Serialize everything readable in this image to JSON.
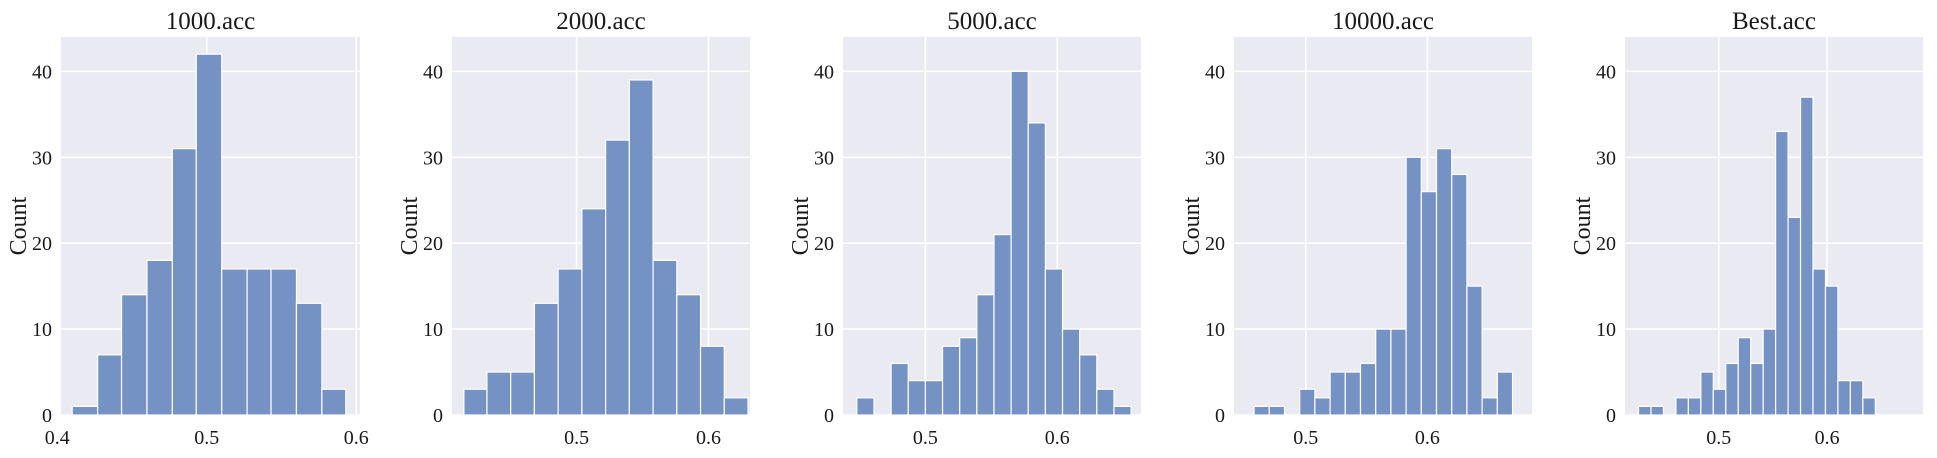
{
  "style": {
    "panel_background": "#eaeaf2",
    "grid_color": "#ffffff",
    "bar_color": "#7592c4",
    "bar_edge": "#ffffff"
  },
  "chart_data": [
    {
      "type": "histogram",
      "title": "1000.acc",
      "xlabel": "",
      "ylabel": "Count",
      "xlim": [
        0.4025,
        0.6025
      ],
      "ylim": [
        0,
        44
      ],
      "xticks": [
        0.4,
        0.5,
        0.6
      ],
      "xtick_labels": [
        "0.4",
        "0.5",
        "0.6"
      ],
      "yticks": [
        0,
        10,
        20,
        30,
        40
      ],
      "ytick_labels": [
        "0",
        "10",
        "20",
        "30",
        "40"
      ],
      "grid": true,
      "bins": [
        {
          "x0": 0.41,
          "x1": 0.427,
          "count": 1
        },
        {
          "x0": 0.427,
          "x1": 0.443,
          "count": 7
        },
        {
          "x0": 0.443,
          "x1": 0.46,
          "count": 14
        },
        {
          "x0": 0.46,
          "x1": 0.477,
          "count": 18
        },
        {
          "x0": 0.477,
          "x1": 0.493,
          "count": 31
        },
        {
          "x0": 0.493,
          "x1": 0.51,
          "count": 42
        },
        {
          "x0": 0.51,
          "x1": 0.527,
          "count": 17
        },
        {
          "x0": 0.527,
          "x1": 0.543,
          "count": 17
        },
        {
          "x0": 0.543,
          "x1": 0.56,
          "count": 17
        },
        {
          "x0": 0.56,
          "x1": 0.577,
          "count": 13
        },
        {
          "x0": 0.577,
          "x1": 0.593,
          "count": 3
        }
      ]
    },
    {
      "type": "histogram",
      "title": "2000.acc",
      "xlabel": "",
      "ylabel": "Count",
      "xlim": [
        0.4055,
        0.6315
      ],
      "ylim": [
        0,
        44
      ],
      "xticks": [
        0.5,
        0.6
      ],
      "xtick_labels": [
        "0.5",
        "0.6"
      ],
      "yticks": [
        0,
        10,
        20,
        30,
        40
      ],
      "ytick_labels": [
        "0",
        "10",
        "20",
        "30",
        "40"
      ],
      "grid": true,
      "bins": [
        {
          "x0": 0.4145,
          "x1": 0.432,
          "count": 3
        },
        {
          "x0": 0.432,
          "x1": 0.45,
          "count": 5
        },
        {
          "x0": 0.45,
          "x1": 0.468,
          "count": 5
        },
        {
          "x0": 0.468,
          "x1": 0.486,
          "count": 13
        },
        {
          "x0": 0.486,
          "x1": 0.504,
          "count": 17
        },
        {
          "x0": 0.504,
          "x1": 0.522,
          "count": 24
        },
        {
          "x0": 0.522,
          "x1": 0.54,
          "count": 32
        },
        {
          "x0": 0.54,
          "x1": 0.558,
          "count": 39
        },
        {
          "x0": 0.558,
          "x1": 0.576,
          "count": 18
        },
        {
          "x0": 0.576,
          "x1": 0.594,
          "count": 14
        },
        {
          "x0": 0.594,
          "x1": 0.612,
          "count": 8
        },
        {
          "x0": 0.612,
          "x1": 0.63,
          "count": 2
        }
      ]
    },
    {
      "type": "histogram",
      "title": "5000.acc",
      "xlabel": "",
      "ylabel": "Count",
      "xlim": [
        0.4375,
        0.6635
      ],
      "ylim": [
        0,
        44
      ],
      "xticks": [
        0.5,
        0.6
      ],
      "xtick_labels": [
        "0.5",
        "0.6"
      ],
      "yticks": [
        0,
        10,
        20,
        30,
        40
      ],
      "ytick_labels": [
        "0",
        "10",
        "20",
        "30",
        "40"
      ],
      "grid": true,
      "bins": [
        {
          "x0": 0.448,
          "x1": 0.461,
          "count": 2
        },
        {
          "x0": 0.474,
          "x1": 0.487,
          "count": 6
        },
        {
          "x0": 0.487,
          "x1": 0.5,
          "count": 4
        },
        {
          "x0": 0.5,
          "x1": 0.513,
          "count": 4
        },
        {
          "x0": 0.513,
          "x1": 0.526,
          "count": 8
        },
        {
          "x0": 0.526,
          "x1": 0.539,
          "count": 9
        },
        {
          "x0": 0.539,
          "x1": 0.552,
          "count": 14
        },
        {
          "x0": 0.552,
          "x1": 0.565,
          "count": 21
        },
        {
          "x0": 0.565,
          "x1": 0.578,
          "count": 40
        },
        {
          "x0": 0.578,
          "x1": 0.591,
          "count": 34
        },
        {
          "x0": 0.591,
          "x1": 0.604,
          "count": 17
        },
        {
          "x0": 0.604,
          "x1": 0.617,
          "count": 10
        },
        {
          "x0": 0.617,
          "x1": 0.63,
          "count": 7
        },
        {
          "x0": 0.63,
          "x1": 0.643,
          "count": 3
        },
        {
          "x0": 0.643,
          "x1": 0.656,
          "count": 1
        }
      ]
    },
    {
      "type": "histogram",
      "title": "10000.acc",
      "xlabel": "",
      "ylabel": "Count",
      "xlim": [
        0.441,
        0.686
      ],
      "ylim": [
        0,
        44
      ],
      "xticks": [
        0.5,
        0.6
      ],
      "xtick_labels": [
        "0.5",
        "0.6"
      ],
      "yticks": [
        0,
        10,
        20,
        30,
        40
      ],
      "ytick_labels": [
        "0",
        "10",
        "20",
        "30",
        "40"
      ],
      "grid": true,
      "bins": [
        {
          "x0": 0.4575,
          "x1": 0.47,
          "count": 1
        },
        {
          "x0": 0.47,
          "x1": 0.4825,
          "count": 1
        },
        {
          "x0": 0.495,
          "x1": 0.5075,
          "count": 3
        },
        {
          "x0": 0.5075,
          "x1": 0.52,
          "count": 2
        },
        {
          "x0": 0.52,
          "x1": 0.5325,
          "count": 5
        },
        {
          "x0": 0.5325,
          "x1": 0.545,
          "count": 5
        },
        {
          "x0": 0.545,
          "x1": 0.5575,
          "count": 6
        },
        {
          "x0": 0.5575,
          "x1": 0.57,
          "count": 10
        },
        {
          "x0": 0.57,
          "x1": 0.5825,
          "count": 10
        },
        {
          "x0": 0.5825,
          "x1": 0.595,
          "count": 30
        },
        {
          "x0": 0.595,
          "x1": 0.6075,
          "count": 26
        },
        {
          "x0": 0.6075,
          "x1": 0.62,
          "count": 31
        },
        {
          "x0": 0.62,
          "x1": 0.6325,
          "count": 28
        },
        {
          "x0": 0.6325,
          "x1": 0.645,
          "count": 15
        },
        {
          "x0": 0.645,
          "x1": 0.6575,
          "count": 2
        },
        {
          "x0": 0.6575,
          "x1": 0.67,
          "count": 5
        }
      ]
    },
    {
      "type": "histogram",
      "title": "Best.acc",
      "xlabel": "",
      "ylabel": "Count",
      "xlim": [
        0.4135,
        0.6885
      ],
      "ylim": [
        0,
        44
      ],
      "xticks": [
        0.5,
        0.6
      ],
      "xtick_labels": [
        "0.5",
        "0.6"
      ],
      "yticks": [
        0,
        10,
        20,
        30,
        40
      ],
      "ytick_labels": [
        "0",
        "10",
        "20",
        "30",
        "40"
      ],
      "grid": true,
      "bins": [
        {
          "x0": 0.426,
          "x1": 0.4375,
          "count": 1
        },
        {
          "x0": 0.4375,
          "x1": 0.449,
          "count": 1
        },
        {
          "x0": 0.4605,
          "x1": 0.472,
          "count": 2
        },
        {
          "x0": 0.472,
          "x1": 0.4835,
          "count": 2
        },
        {
          "x0": 0.4835,
          "x1": 0.495,
          "count": 5
        },
        {
          "x0": 0.495,
          "x1": 0.5065,
          "count": 3
        },
        {
          "x0": 0.5065,
          "x1": 0.518,
          "count": 6
        },
        {
          "x0": 0.518,
          "x1": 0.5295,
          "count": 9
        },
        {
          "x0": 0.5295,
          "x1": 0.541,
          "count": 6
        },
        {
          "x0": 0.541,
          "x1": 0.5525,
          "count": 10
        },
        {
          "x0": 0.5525,
          "x1": 0.564,
          "count": 33
        },
        {
          "x0": 0.564,
          "x1": 0.5755,
          "count": 23
        },
        {
          "x0": 0.5755,
          "x1": 0.587,
          "count": 37
        },
        {
          "x0": 0.587,
          "x1": 0.5985,
          "count": 17
        },
        {
          "x0": 0.5985,
          "x1": 0.61,
          "count": 15
        },
        {
          "x0": 0.61,
          "x1": 0.6215,
          "count": 4
        },
        {
          "x0": 0.6215,
          "x1": 0.633,
          "count": 4
        },
        {
          "x0": 0.633,
          "x1": 0.6445,
          "count": 2
        }
      ]
    }
  ]
}
